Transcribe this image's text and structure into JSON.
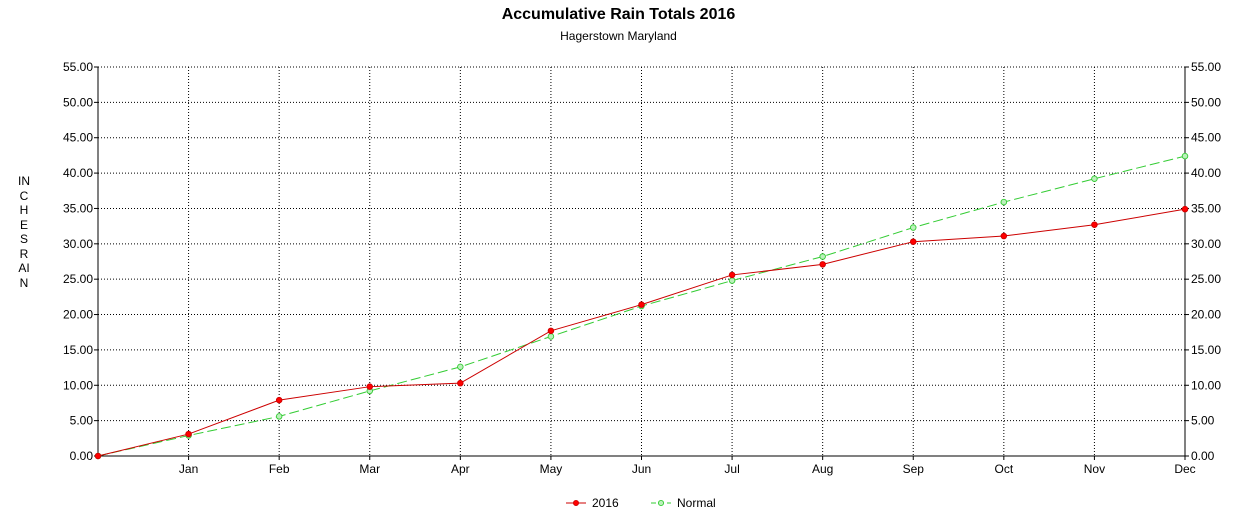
{
  "chart_data": {
    "type": "line",
    "title": "Accumulative Rain Totals 2016",
    "subtitle": "Hagerstown Maryland",
    "ylabel": "INCHES RAIN",
    "x": [
      "",
      "Jan",
      "Feb",
      "Mar",
      "Apr",
      "May",
      "Jun",
      "Jul",
      "Aug",
      "Sep",
      "Oct",
      "Nov",
      "Dec"
    ],
    "categories": [
      "Jan",
      "Feb",
      "Mar",
      "Apr",
      "May",
      "Jun",
      "Jul",
      "Aug",
      "Sep",
      "Oct",
      "Nov",
      "Dec"
    ],
    "y_ticks": [
      "0.00",
      "5.00",
      "10.00",
      "15.00",
      "20.00",
      "25.00",
      "30.00",
      "35.00",
      "40.00",
      "45.00",
      "50.00",
      "55.00"
    ],
    "ylim": [
      0,
      55
    ],
    "grid": true,
    "legend_position": "bottom-center",
    "series": [
      {
        "name": "2016",
        "color": "#cc0000",
        "marker_color": "#ff0000",
        "style": "solid",
        "values": [
          0,
          3.1,
          7.9,
          9.8,
          10.3,
          17.7,
          21.4,
          25.6,
          27.1,
          30.3,
          31.1,
          32.7,
          34.9
        ]
      },
      {
        "name": "Normal",
        "color": "#33cc33",
        "marker_color": "#33cc33",
        "style": "dashed",
        "values": [
          0,
          2.9,
          5.6,
          9.2,
          12.6,
          16.9,
          21.2,
          24.8,
          28.2,
          32.3,
          35.9,
          39.2,
          42.4
        ]
      }
    ]
  }
}
